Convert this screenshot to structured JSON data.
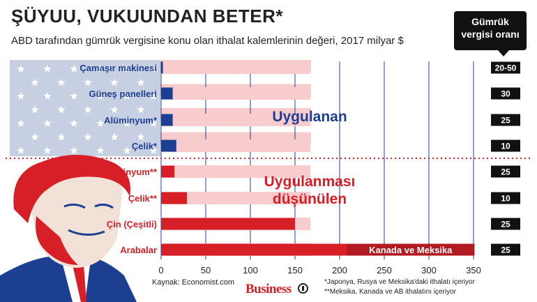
{
  "title": "ŞÜYUU, VUKUUNDAN BETER*",
  "subtitle": "ABD tarafından gümrük vergisine konu olan ithalat kalemlerinin değeri, 2017 milyar $",
  "tariff_header": [
    "Gümrük",
    "vergisi oranı"
  ],
  "source": "Kaynak: Economist.com",
  "footnotes": [
    "*Japonya, Rusya ve Meksika'daki ithalatı içeriyor",
    "**Meksika, Kanada ve AB ithalatını içeriyor"
  ],
  "brand": "Business",
  "colors": {
    "applied": "#1d3f91",
    "considered": "#d61f26",
    "background_bar": "#f8cccd",
    "tariff_box": "#111111",
    "flag_blue": "#c7cfe3"
  },
  "chart_data": {
    "type": "bar",
    "orientation": "horizontal",
    "xlim": [
      0,
      350
    ],
    "x_ticks": [
      0,
      50,
      100,
      150,
      200,
      250,
      300,
      350
    ],
    "grid": true,
    "groups": [
      {
        "label": "Uygulanan",
        "color": "#1d3f91",
        "items": [
          {
            "category": "Çamaşır makinesi",
            "value": 2,
            "tariff": "20-50"
          },
          {
            "category": "Güneş panelleri",
            "value": 13,
            "tariff": "30"
          },
          {
            "category": "Alüminyum*",
            "value": 13,
            "tariff": "25"
          },
          {
            "category": "Çelik*",
            "value": 17,
            "tariff": "10"
          }
        ]
      },
      {
        "label": "Uygulanması düşünülen",
        "label_lines": [
          "Uygulanması",
          "düşünülen"
        ],
        "color": "#d61f26",
        "items": [
          {
            "category": "Alüminyum**",
            "value": 15,
            "tariff": "25"
          },
          {
            "category": "Çelik**",
            "value": 29,
            "tariff": "10"
          },
          {
            "category": "Çin (Çeşitli)",
            "value": 150,
            "tariff": "25"
          },
          {
            "category": "Arabalar",
            "value": 351,
            "tariff": "25",
            "highlight": {
              "from": 208,
              "to": 351,
              "label": "Kanada ve Meksika",
              "color": "#b01a20"
            }
          }
        ]
      }
    ]
  }
}
